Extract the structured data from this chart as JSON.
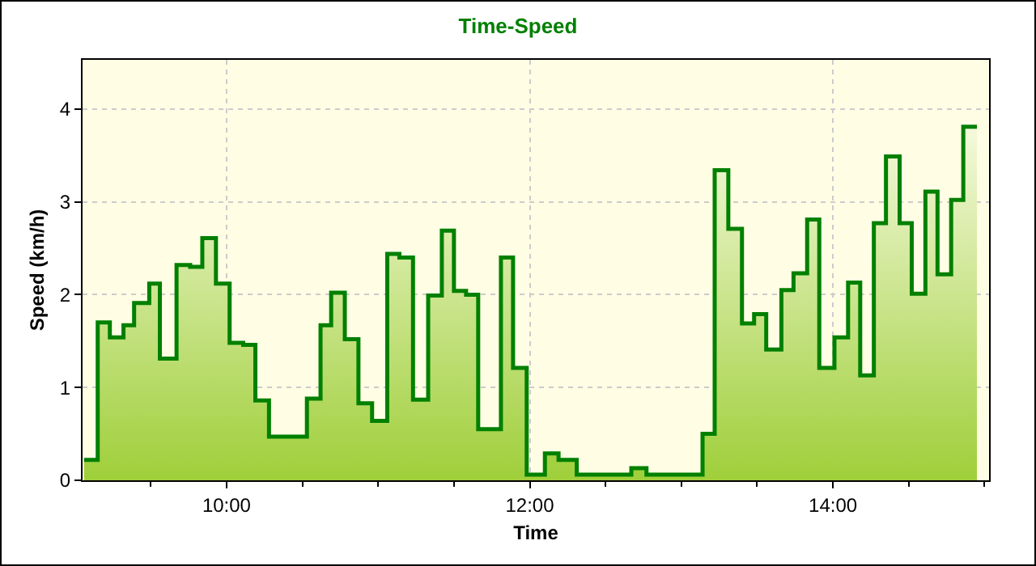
{
  "chart_data": {
    "type": "area",
    "title": "Time-Speed",
    "xlabel": "Time",
    "ylabel": "Speed (km/h)",
    "x": [
      9.06,
      9.15,
      9.15,
      9.23,
      9.23,
      9.32,
      9.32,
      9.39,
      9.39,
      9.49,
      9.49,
      9.56,
      9.56,
      9.67,
      9.67,
      9.76,
      9.76,
      9.84,
      9.84,
      9.93,
      9.93,
      10.02,
      10.02,
      10.11,
      10.11,
      10.19,
      10.19,
      10.28,
      10.28,
      10.53,
      10.53,
      10.62,
      10.62,
      10.69,
      10.69,
      10.78,
      10.78,
      10.87,
      10.87,
      10.96,
      10.96,
      11.06,
      11.06,
      11.14,
      11.14,
      11.23,
      11.23,
      11.33,
      11.33,
      11.42,
      11.42,
      11.5,
      11.5,
      11.58,
      11.58,
      11.66,
      11.66,
      11.81,
      11.81,
      11.89,
      11.89,
      11.98,
      11.98,
      12.1,
      12.1,
      12.19,
      12.19,
      12.31,
      12.31,
      12.67,
      12.67,
      12.77,
      12.77,
      13.14,
      13.14,
      13.22,
      13.22,
      13.31,
      13.31,
      13.4,
      13.4,
      13.48,
      13.48,
      13.56,
      13.56,
      13.66,
      13.66,
      13.74,
      13.74,
      13.83,
      13.83,
      13.91,
      13.91,
      14.01,
      14.01,
      14.1,
      14.1,
      14.18,
      14.18,
      14.27,
      14.27,
      14.35,
      14.35,
      14.44,
      14.44,
      14.52,
      14.52,
      14.61,
      14.61,
      14.69,
      14.69,
      14.78,
      14.78,
      14.86,
      14.86,
      14.95
    ],
    "series": [
      {
        "color": "#008000",
        "values": [
          0.22,
          0.22,
          1.7,
          1.7,
          1.54,
          1.54,
          1.67,
          1.67,
          1.91,
          1.91,
          2.12,
          2.12,
          1.31,
          1.31,
          2.32,
          2.32,
          2.3,
          2.3,
          2.61,
          2.61,
          2.12,
          2.12,
          1.48,
          1.48,
          1.46,
          1.46,
          0.86,
          0.86,
          0.47,
          0.47,
          0.88,
          0.88,
          1.67,
          1.67,
          2.02,
          2.02,
          1.52,
          1.52,
          0.83,
          0.83,
          0.64,
          0.64,
          2.44,
          2.44,
          2.4,
          2.4,
          0.87,
          0.87,
          1.99,
          1.99,
          2.69,
          2.69,
          2.04,
          2.04,
          2.0,
          2.0,
          0.55,
          0.55,
          2.4,
          2.4,
          1.21,
          1.21,
          0.06,
          0.06,
          0.29,
          0.29,
          0.22,
          0.22,
          0.06,
          0.06,
          0.13,
          0.13,
          0.06,
          0.06,
          0.5,
          0.5,
          3.34,
          3.34,
          2.71,
          2.71,
          1.69,
          1.69,
          1.79,
          1.79,
          1.41,
          1.41,
          2.05,
          2.05,
          2.23,
          2.23,
          2.81,
          2.81,
          1.21,
          1.21,
          1.54,
          1.54,
          2.13,
          2.13,
          1.13,
          1.13,
          2.77,
          2.77,
          3.49,
          3.49,
          2.77,
          2.77,
          2.01,
          2.01,
          3.11,
          3.11,
          2.22,
          2.22,
          3.02,
          3.02,
          3.81,
          3.81
        ]
      }
    ],
    "xlim": [
      9.05,
      15.03
    ],
    "xticks": [
      {
        "value": 9.5,
        "label": null
      },
      {
        "value": 10,
        "label": "10:00"
      },
      {
        "value": 10.5,
        "label": null
      },
      {
        "value": 11,
        "label": null
      },
      {
        "value": 11.5,
        "label": null
      },
      {
        "value": 12,
        "label": "12:00"
      },
      {
        "value": 12.5,
        "label": null
      },
      {
        "value": 13,
        "label": null
      },
      {
        "value": 13.5,
        "label": null
      },
      {
        "value": 14,
        "label": "14:00"
      },
      {
        "value": 14.5,
        "label": null
      },
      {
        "value": 15,
        "label": null
      }
    ],
    "ylim": [
      0,
      4.53
    ],
    "yticks": [
      0,
      1,
      2,
      3,
      4
    ],
    "grid": true,
    "line_style": "solid",
    "marker": "none",
    "legend": false
  }
}
